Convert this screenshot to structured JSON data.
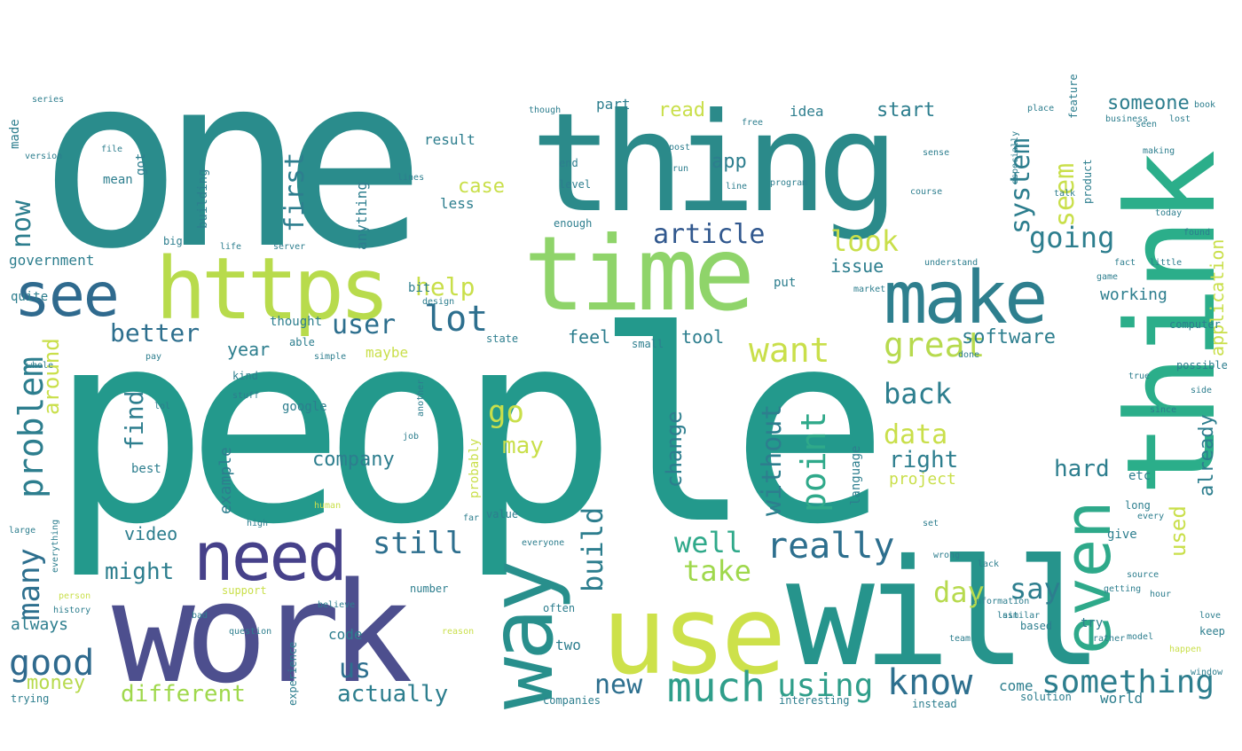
{
  "palette": {
    "purple": "#3f4a8a",
    "blue": "#31688e",
    "teal": "#26828e",
    "teal2": "#1f9e89",
    "green": "#35b779",
    "lightgreen": "#8fd744",
    "yellow": "#d2e21b",
    "paleyellow": "#e0e85a"
  },
  "words": {
    "people": "people",
    "one": "one",
    "thing": "thing",
    "time": "time",
    "https": "https",
    "work": "work",
    "use": "use",
    "will": "will",
    "think": "think",
    "make": "make",
    "way": "way",
    "even": "even",
    "need": "need",
    "see": "see",
    "good": "good",
    "much": "much",
    "know": "know",
    "using": "using",
    "something": "something",
    "really": "really",
    "want": "want",
    "great": "great",
    "lot": "lot",
    "user": "user",
    "better": "better",
    "problem": "problem",
    "help": "help",
    "look": "look",
    "going": "going",
    "article": "article",
    "first": "first",
    "now": "now",
    "still": "still",
    "well": "well",
    "take": "take",
    "day": "day",
    "say": "say",
    "go": "go",
    "may": "may",
    "data": "data",
    "back": "back",
    "point": "point",
    "without": "without",
    "find": "find",
    "build": "build",
    "many": "many",
    "might": "might",
    "new": "new",
    "us": "us",
    "actually": "actually",
    "different": "different",
    "money": "money",
    "company": "company",
    "change": "change",
    "right": "right",
    "hard": "hard",
    "system": "system",
    "seem": "seem",
    "software": "software",
    "application": "application",
    "someone": "someone",
    "start": "start",
    "read": "read",
    "app": "app",
    "case": "case",
    "feel": "feel",
    "tool": "tool",
    "year": "year",
    "around": "around",
    "used": "used",
    "already": "already",
    "example": "example",
    "video": "video",
    "always": "always",
    "project": "project",
    "issue": "issue",
    "working": "working",
    "code": "code",
    "two": "two",
    "come": "come",
    "world": "world",
    "idea": "idea",
    "part": "part",
    "result": "result",
    "anything": "anything",
    "less": "less",
    "government": "government",
    "mean": "mean",
    "got": "got",
    "building": "building",
    "made": "made",
    "quite": "quite",
    "thought": "thought",
    "able": "able",
    "maybe": "maybe",
    "google": "google",
    "best": "best",
    "kind": "kind",
    "bit": "bit",
    "put": "put",
    "state": "state",
    "small": "small",
    "probably": "probably",
    "language": "language",
    "etc": "etc",
    "give": "give",
    "try": "try",
    "based": "based",
    "solution": "solution",
    "instead": "instead",
    "keep": "keep",
    "feature": "feature",
    "product": "product",
    "computer": "computer",
    "possible": "possible",
    "long": "long",
    "end": "end",
    "level": "level",
    "big": "big",
    "enough": "enough",
    "trying": "trying",
    "experience": "experience",
    "interesting": "interesting",
    "companies": "companies",
    "often": "often",
    "number": "number",
    "value": "value",
    "everything": "everything",
    "support": "support",
    "information": "information",
    "another": "another",
    "design": "design",
    "market": "market",
    "understand": "understand",
    "fact": "fact",
    "little": "little",
    "business": "business",
    "lost": "lost",
    "making": "making",
    "today": "today",
    "found": "found",
    "every": "every",
    "wrong": "wrong",
    "lack": "lack",
    "done": "done",
    "since": "since",
    "getting": "getting",
    "similar": "similar",
    "model": "model",
    "happen": "happen",
    "window": "window",
    "source": "source",
    "rather": "rather",
    "question": "question",
    "believe": "believe",
    "server": "server",
    "life": "life",
    "everyone": "everyone",
    "high": "high",
    "large": "large",
    "far": "far",
    "place": "place",
    "though": "though",
    "file": "file",
    "version": "version",
    "especially": "especially",
    "program": "program",
    "free": "free",
    "post": "post",
    "love": "love",
    "game": "game",
    "bad": "bad",
    "stuff": "stuff",
    "simple": "simple",
    "last": "last",
    "side": "side",
    "reason": "reason",
    "person": "person",
    "lol": "lol",
    "talk": "talk",
    "pay": "pay",
    "run": "run",
    "course": "course",
    "history": "history",
    "book": "book",
    "say2": "seen",
    "idk": "line",
    "job": "job",
    "human": "human",
    "series": "series",
    "sense": "sense",
    "true": "true",
    "hour": "hour",
    "set": "set",
    "whole": "whole",
    "team": "team",
    "lines": "lines"
  }
}
